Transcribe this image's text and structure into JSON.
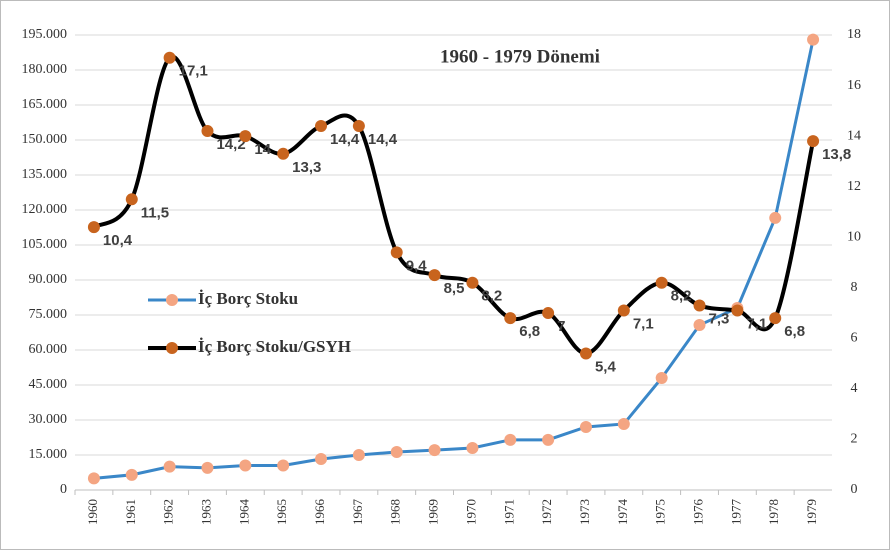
{
  "chart_data": {
    "type": "line",
    "title": "1960 - 1979 Dönemi",
    "categories": [
      "1960",
      "1961",
      "1962",
      "1963",
      "1964",
      "1965",
      "1966",
      "1967",
      "1968",
      "1969",
      "1970",
      "1971",
      "1972",
      "1973",
      "1974",
      "1975",
      "1976",
      "1977",
      "1978",
      "1979"
    ],
    "series": [
      {
        "name": "İç Borç Stoku",
        "color": "#3a87c8",
        "marker_color": "#f4a582",
        "axis": "y",
        "values": [
          5000,
          6500,
          10000,
          9500,
          10500,
          10500,
          13300,
          15000,
          16300,
          17100,
          18000,
          21500,
          21500,
          27000,
          28300,
          48000,
          70700,
          78000,
          116600,
          193000
        ]
      },
      {
        "name": "İç Borç Stoku/GSYH",
        "color": "#000000",
        "marker_color": "#c8641e",
        "axis": "y2",
        "values": [
          10.4,
          11.5,
          17.1,
          14.2,
          14,
          13.3,
          14.4,
          14.4,
          9.4,
          8.5,
          8.2,
          6.8,
          7,
          5.4,
          7.1,
          8.2,
          7.3,
          7.1,
          6.8,
          13.8
        ],
        "value_labels": [
          "10,4",
          "11,5",
          "17,1",
          "14,2",
          "14",
          "13,3",
          "14,4",
          "14,4",
          "9,4",
          "8,5",
          "8,2",
          "6,8",
          "7",
          "5,4",
          "7,1",
          "8,2",
          "7,3",
          "7,1",
          "6,8",
          "13,8"
        ]
      }
    ],
    "ylim": [
      0,
      195000
    ],
    "yticks": [
      0,
      {
        "value": 15000,
        "label": "15.000"
      },
      {
        "value": 30000,
        "label": "30.000"
      },
      {
        "value": 45000,
        "label": "45.000"
      },
      {
        "value": 60000,
        "label": "60.000"
      },
      {
        "value": 75000,
        "label": "75.000"
      },
      {
        "value": 90000,
        "label": "90.000"
      },
      {
        "value": 105000,
        "label": "105.000"
      },
      {
        "value": 120000,
        "label": "120.000"
      },
      {
        "value": 135000,
        "label": "135.000"
      },
      {
        "value": 150000,
        "label": "150.000"
      },
      {
        "value": 165000,
        "label": "165.000"
      },
      {
        "value": 180000,
        "label": "180.000"
      },
      {
        "value": 195000,
        "label": "195.000"
      }
    ],
    "y2lim": [
      0,
      18
    ],
    "y2ticks": [
      0,
      2,
      4,
      6,
      8,
      10,
      12,
      14,
      16,
      18
    ],
    "grid": true
  }
}
